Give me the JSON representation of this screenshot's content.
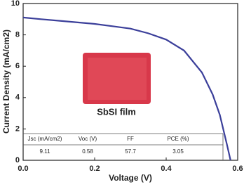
{
  "chart_data": {
    "type": "line",
    "xlabel": "Voltage (V)",
    "ylabel": "Current Density (mA/cm2)",
    "x": [
      0,
      0.05,
      0.1,
      0.15,
      0.2,
      0.25,
      0.3,
      0.35,
      0.4,
      0.45,
      0.5,
      0.53,
      0.55,
      0.57,
      0.58
    ],
    "series": [
      {
        "color": "#3b3f9a",
        "values": [
          9.11,
          9.0,
          8.9,
          8.8,
          8.7,
          8.55,
          8.4,
          8.1,
          7.7,
          7.0,
          5.6,
          4.2,
          2.9,
          1.0,
          0
        ]
      }
    ],
    "xlim": [
      0,
      0.6
    ],
    "ylim": [
      0,
      10
    ],
    "xticks": [
      {
        "value": 0,
        "label": "0.0"
      },
      0.2,
      0.4,
      0.6
    ],
    "yticks": [
      0,
      2,
      4,
      6,
      8,
      10
    ],
    "inset_label": "SbSI film",
    "table": {
      "header": [
        "Jsc (mA/cm2)",
        "Voc (V)",
        "FF",
        "PCE (%)"
      ],
      "rows": [
        [
          "9.11",
          "0.58",
          "57.7",
          "3.05"
        ]
      ]
    }
  }
}
